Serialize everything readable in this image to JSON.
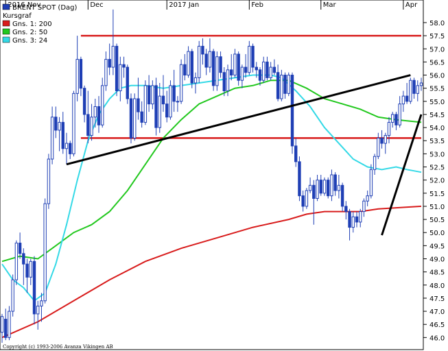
{
  "chart_data": {
    "type": "candlestick",
    "legend_position": "top-left",
    "grid": false,
    "y_axis_side": "right",
    "ylim": [
      45.8,
      58.6
    ],
    "y_ticks": [
      "58.0",
      "57.5",
      "57.0",
      "56.5",
      "56.0",
      "55.5",
      "55.0",
      "54.5",
      "54.0",
      "53.5",
      "53.0",
      "52.5",
      "52.0",
      "51.5",
      "51.0",
      "50.5",
      "50.0",
      "49.5",
      "49.0",
      "48.5",
      "48.0",
      "47.5",
      "47.0",
      "46.5",
      "46.0"
    ],
    "y_tick_values": [
      58.0,
      57.5,
      57.0,
      56.5,
      56.0,
      55.5,
      55.0,
      54.5,
      54.0,
      53.5,
      53.0,
      52.5,
      52.0,
      51.5,
      51.0,
      50.5,
      50.0,
      49.5,
      49.0,
      48.5,
      48.0,
      47.5,
      47.0,
      46.5,
      46.0
    ],
    "x_ticks": [
      {
        "label": "2016 Nov",
        "index": 1
      },
      {
        "label": "Dec",
        "index": 24
      },
      {
        "label": "2017 Jan",
        "index": 46
      },
      {
        "label": "Feb",
        "index": 69
      },
      {
        "label": "Mar",
        "index": 89
      },
      {
        "label": "Apr",
        "index": 112
      }
    ],
    "x_count": 118,
    "legend": [
      {
        "label": "BRENT SPOT (Dag)",
        "color": "#1f3fb5"
      },
      {
        "label": "Kursgraf",
        "color": null
      },
      {
        "label": "Gns. 1: 200",
        "color": "#d81b1b"
      },
      {
        "label": "Gns. 2: 50",
        "color": "#22c81e"
      },
      {
        "label": "Gns. 3: 24",
        "color": "#33d9e6"
      }
    ],
    "candles": [
      [
        46.2,
        46.9,
        45.8,
        46.8
      ],
      [
        46.7,
        47.1,
        45.9,
        46.0
      ],
      [
        46.0,
        47.2,
        45.9,
        47.0
      ],
      [
        47.0,
        48.4,
        46.8,
        48.2
      ],
      [
        48.2,
        49.7,
        48.0,
        49.6
      ],
      [
        49.6,
        50.0,
        49.0,
        49.2
      ],
      [
        49.2,
        49.4,
        48.0,
        48.8
      ],
      [
        48.8,
        49.0,
        47.7,
        48.3
      ],
      [
        48.3,
        49.0,
        48.0,
        48.9
      ],
      [
        48.9,
        49.1,
        46.5,
        46.9
      ],
      [
        46.9,
        47.4,
        46.3,
        47.2
      ],
      [
        47.2,
        47.7,
        46.6,
        47.4
      ],
      [
        47.4,
        51.3,
        47.3,
        51.1
      ],
      [
        51.1,
        53.0,
        50.9,
        52.8
      ],
      [
        52.8,
        54.8,
        52.6,
        54.4
      ],
      [
        54.4,
        54.8,
        53.6,
        53.9
      ],
      [
        53.9,
        54.4,
        53.1,
        54.2
      ],
      [
        54.2,
        54.6,
        53.0,
        53.2
      ],
      [
        53.2,
        53.8,
        52.6,
        53.4
      ],
      [
        53.4,
        53.5,
        52.8,
        53.0
      ],
      [
        53.0,
        55.4,
        52.9,
        55.3
      ],
      [
        55.3,
        57.5,
        55.0,
        56.6
      ],
      [
        56.6,
        56.7,
        55.2,
        55.5
      ],
      [
        55.5,
        55.6,
        54.2,
        54.5
      ],
      [
        54.5,
        55.4,
        53.4,
        53.7
      ],
      [
        53.7,
        54.9,
        53.5,
        54.4
      ],
      [
        54.4,
        55.1,
        54.0,
        54.8
      ],
      [
        54.8,
        55.2,
        53.8,
        54.1
      ],
      [
        54.1,
        55.9,
        54.0,
        55.6
      ],
      [
        55.6,
        56.9,
        55.4,
        56.6
      ],
      [
        56.6,
        57.2,
        56.0,
        56.3
      ],
      [
        56.3,
        58.5,
        56.0,
        57.1
      ],
      [
        57.1,
        57.2,
        55.2,
        55.4
      ],
      [
        55.4,
        56.7,
        55.0,
        56.4
      ],
      [
        56.4,
        56.7,
        55.9,
        56.3
      ],
      [
        56.3,
        56.4,
        54.9,
        55.1
      ],
      [
        55.1,
        55.3,
        53.4,
        53.6
      ],
      [
        53.6,
        55.3,
        53.5,
        55.1
      ],
      [
        55.1,
        55.9,
        54.3,
        54.6
      ],
      [
        54.6,
        55.0,
        54.0,
        54.2
      ],
      [
        54.2,
        55.8,
        54.1,
        55.6
      ],
      [
        55.6,
        56.0,
        54.6,
        54.9
      ],
      [
        54.9,
        55.8,
        54.7,
        55.6
      ],
      [
        55.6,
        55.9,
        53.7,
        54.0
      ],
      [
        54.0,
        55.7,
        53.8,
        55.2
      ],
      [
        55.2,
        56.0,
        54.6,
        54.9
      ],
      [
        54.9,
        55.4,
        54.2,
        54.4
      ],
      [
        54.4,
        55.8,
        54.3,
        55.6
      ],
      [
        55.6,
        56.2,
        54.6,
        55.0
      ],
      [
        55.0,
        55.2,
        54.6,
        55.0
      ],
      [
        55.0,
        56.6,
        54.9,
        56.4
      ],
      [
        56.4,
        56.8,
        55.8,
        56.0
      ],
      [
        56.0,
        57.1,
        55.9,
        56.9
      ],
      [
        56.9,
        57.0,
        55.5,
        55.7
      ],
      [
        55.7,
        56.1,
        55.3,
        55.9
      ],
      [
        55.9,
        57.3,
        55.7,
        57.1
      ],
      [
        57.1,
        57.4,
        56.4,
        56.8
      ],
      [
        56.8,
        57.0,
        56.0,
        56.3
      ],
      [
        56.3,
        57.4,
        56.1,
        56.9
      ],
      [
        56.9,
        57.0,
        55.4,
        55.6
      ],
      [
        55.6,
        56.9,
        55.4,
        56.7
      ],
      [
        56.7,
        56.9,
        55.9,
        56.1
      ],
      [
        56.1,
        56.3,
        55.2,
        55.4
      ],
      [
        55.4,
        56.4,
        55.2,
        56.2
      ],
      [
        56.2,
        56.8,
        55.8,
        56.0
      ],
      [
        56.0,
        57.0,
        55.9,
        56.8
      ],
      [
        56.8,
        56.9,
        55.6,
        55.8
      ],
      [
        55.8,
        56.4,
        55.5,
        56.3
      ],
      [
        56.3,
        56.8,
        55.9,
        56.1
      ],
      [
        56.1,
        57.3,
        56.0,
        57.1
      ],
      [
        57.1,
        57.2,
        56.1,
        56.3
      ],
      [
        56.3,
        56.5,
        55.9,
        56.2
      ],
      [
        56.2,
        56.3,
        55.6,
        55.8
      ],
      [
        55.8,
        56.7,
        55.7,
        56.5
      ],
      [
        56.5,
        56.7,
        55.8,
        55.9
      ],
      [
        55.9,
        56.5,
        55.8,
        56.3
      ],
      [
        56.3,
        56.6,
        56.0,
        56.1
      ],
      [
        56.1,
        56.4,
        55.0,
        55.1
      ],
      [
        55.1,
        56.2,
        55.0,
        56.0
      ],
      [
        56.0,
        56.1,
        55.1,
        55.3
      ],
      [
        55.3,
        56.1,
        55.2,
        56.0
      ],
      [
        56.0,
        56.1,
        53.0,
        53.3
      ],
      [
        53.3,
        53.6,
        52.5,
        52.7
      ],
      [
        52.7,
        52.9,
        51.2,
        51.4
      ],
      [
        51.4,
        51.6,
        50.8,
        51.0
      ],
      [
        51.0,
        51.7,
        50.9,
        51.6
      ],
      [
        51.6,
        52.1,
        51.5,
        51.8
      ],
      [
        51.8,
        52.0,
        50.3,
        51.3
      ],
      [
        51.3,
        52.2,
        51.2,
        52.0
      ],
      [
        52.0,
        52.2,
        51.4,
        51.5
      ],
      [
        51.5,
        52.1,
        51.4,
        52.0
      ],
      [
        52.0,
        52.1,
        51.3,
        51.4
      ],
      [
        51.4,
        52.4,
        51.2,
        52.2
      ],
      [
        52.2,
        52.3,
        51.4,
        51.6
      ],
      [
        51.6,
        52.2,
        51.3,
        51.8
      ],
      [
        51.8,
        51.9,
        50.8,
        51.0
      ],
      [
        51.0,
        51.2,
        50.5,
        50.8
      ],
      [
        50.8,
        50.9,
        49.7,
        50.2
      ],
      [
        50.2,
        50.8,
        50.0,
        50.6
      ],
      [
        50.6,
        50.8,
        50.2,
        50.4
      ],
      [
        50.4,
        50.9,
        50.2,
        50.8
      ],
      [
        50.8,
        51.3,
        50.6,
        51.2
      ],
      [
        51.2,
        51.6,
        51.0,
        51.4
      ],
      [
        51.4,
        52.6,
        51.3,
        52.4
      ],
      [
        52.4,
        53.0,
        52.2,
        52.9
      ],
      [
        52.9,
        53.8,
        52.8,
        53.6
      ],
      [
        53.6,
        53.9,
        53.2,
        53.4
      ],
      [
        53.4,
        53.8,
        53.0,
        53.7
      ],
      [
        53.7,
        54.4,
        53.4,
        54.2
      ],
      [
        54.2,
        54.6,
        54.0,
        54.5
      ],
      [
        54.5,
        54.6,
        53.9,
        54.1
      ],
      [
        54.1,
        55.2,
        54.0,
        54.9
      ],
      [
        54.9,
        55.4,
        54.6,
        55.2
      ],
      [
        55.2,
        55.7,
        54.9,
        55.0
      ],
      [
        55.0,
        55.9,
        54.9,
        55.8
      ],
      [
        55.8,
        55.9,
        55.1,
        55.3
      ],
      [
        55.3,
        55.8,
        55.0,
        55.6
      ],
      [
        55.6,
        55.9,
        55.4,
        55.7
      ]
    ],
    "moving_averages": [
      {
        "name": "Gns. 1: 200",
        "color": "#d81b1b",
        "points": [
          [
            0,
            46.0
          ],
          [
            10,
            46.6
          ],
          [
            20,
            47.4
          ],
          [
            30,
            48.2
          ],
          [
            40,
            48.9
          ],
          [
            50,
            49.4
          ],
          [
            60,
            49.8
          ],
          [
            70,
            50.2
          ],
          [
            80,
            50.5
          ],
          [
            85,
            50.7
          ],
          [
            90,
            50.8
          ],
          [
            100,
            50.8
          ],
          [
            105,
            50.9
          ],
          [
            117,
            51.0
          ]
        ]
      },
      {
        "name": "Gns. 2: 50",
        "color": "#22c81e",
        "points": [
          [
            0,
            48.9
          ],
          [
            5,
            49.1
          ],
          [
            10,
            49.0
          ],
          [
            15,
            49.5
          ],
          [
            20,
            50.0
          ],
          [
            25,
            50.3
          ],
          [
            30,
            50.8
          ],
          [
            35,
            51.6
          ],
          [
            40,
            52.6
          ],
          [
            45,
            53.6
          ],
          [
            50,
            54.3
          ],
          [
            55,
            54.9
          ],
          [
            60,
            55.2
          ],
          [
            65,
            55.5
          ],
          [
            70,
            55.6
          ],
          [
            75,
            55.8
          ],
          [
            80,
            55.8
          ],
          [
            85,
            55.5
          ],
          [
            90,
            55.1
          ],
          [
            95,
            54.9
          ],
          [
            100,
            54.7
          ],
          [
            105,
            54.4
          ],
          [
            110,
            54.3
          ],
          [
            117,
            54.2
          ]
        ]
      },
      {
        "name": "Gns. 3: 24",
        "color": "#33d9e6",
        "points": [
          [
            0,
            48.8
          ],
          [
            3,
            48.2
          ],
          [
            6,
            47.9
          ],
          [
            9,
            47.4
          ],
          [
            12,
            47.7
          ],
          [
            15,
            48.8
          ],
          [
            18,
            50.3
          ],
          [
            21,
            52.0
          ],
          [
            24,
            53.5
          ],
          [
            27,
            54.5
          ],
          [
            30,
            55.1
          ],
          [
            33,
            55.5
          ],
          [
            36,
            55.6
          ],
          [
            40,
            55.6
          ],
          [
            45,
            55.5
          ],
          [
            50,
            55.6
          ],
          [
            55,
            55.7
          ],
          [
            60,
            55.8
          ],
          [
            65,
            55.9
          ],
          [
            70,
            56.0
          ],
          [
            75,
            56.0
          ],
          [
            78,
            55.9
          ],
          [
            82,
            55.4
          ],
          [
            86,
            54.8
          ],
          [
            90,
            54.0
          ],
          [
            94,
            53.4
          ],
          [
            98,
            52.8
          ],
          [
            102,
            52.5
          ],
          [
            106,
            52.4
          ],
          [
            110,
            52.5
          ],
          [
            113,
            52.4
          ],
          [
            117,
            52.3
          ]
        ]
      }
    ],
    "trend_lines": [
      {
        "color": "#d81b1b",
        "points": [
          [
            22,
            57.5
          ],
          [
            117,
            57.5
          ]
        ]
      },
      {
        "color": "#d81b1b",
        "points": [
          [
            22,
            53.6
          ],
          [
            117,
            53.6
          ]
        ]
      },
      {
        "color": "#000000",
        "points": [
          [
            18,
            52.6
          ],
          [
            114,
            56.0
          ]
        ]
      },
      {
        "color": "#000000",
        "points": [
          [
            106,
            49.9
          ],
          [
            117,
            54.5
          ]
        ]
      }
    ],
    "copyright": "Copyright (c) 1993-2006 Avanza Vikingen AB"
  }
}
